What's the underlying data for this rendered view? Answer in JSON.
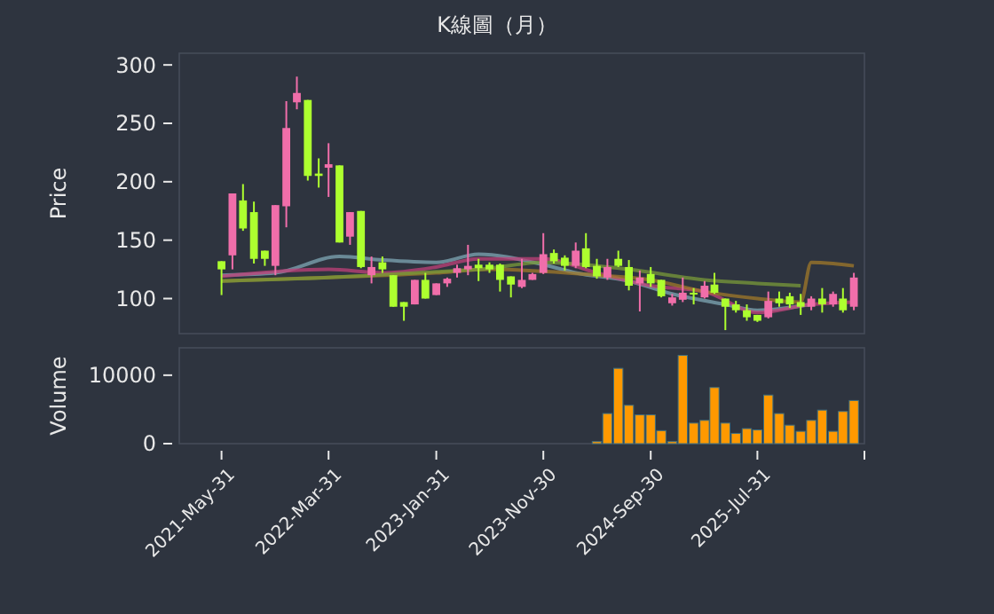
{
  "chart_data": [
    {
      "type": "candlestick",
      "title": "K線圖（月）",
      "ylabel": "Price",
      "x": [
        "2021-05",
        "2021-06",
        "2021-07",
        "2021-08",
        "2021-09",
        "2021-10",
        "2021-11",
        "2021-12",
        "2022-01",
        "2022-02",
        "2022-03",
        "2022-04",
        "2022-05",
        "2022-06",
        "2022-07",
        "2022-08",
        "2022-09",
        "2022-10",
        "2022-11",
        "2022-12",
        "2023-01",
        "2023-02",
        "2023-03",
        "2023-04",
        "2023-05",
        "2023-06",
        "2023-07",
        "2023-08",
        "2023-09",
        "2023-10",
        "2023-11",
        "2023-12",
        "2024-01",
        "2024-02",
        "2024-03",
        "2024-04",
        "2024-05",
        "2024-06",
        "2024-07",
        "2024-08",
        "2024-09",
        "2024-10",
        "2024-11",
        "2024-12",
        "2025-01",
        "2025-02",
        "2025-03",
        "2025-04",
        "2025-05",
        "2025-06",
        "2025-07",
        "2025-08",
        "2025-09",
        "2025-10",
        "2025-11",
        "2025-12",
        "2026-01",
        "2026-02",
        "2026-03",
        "2026-04"
      ],
      "ohlc": [
        [
          132,
          132,
          103,
          125
        ],
        [
          137,
          190,
          125,
          190
        ],
        [
          184,
          198,
          158,
          160
        ],
        [
          174,
          183,
          130,
          134
        ],
        [
          141,
          141,
          128,
          134
        ],
        [
          128,
          180,
          120,
          180
        ],
        [
          179,
          269,
          161,
          246
        ],
        [
          268,
          290,
          262,
          276
        ],
        [
          270,
          270,
          201,
          205
        ],
        [
          207,
          220,
          195,
          205
        ],
        [
          212,
          233,
          187,
          215
        ],
        [
          214,
          214,
          148,
          148
        ],
        [
          153,
          174,
          146,
          174
        ],
        [
          175,
          175,
          126,
          127
        ],
        [
          120,
          136,
          113,
          127
        ],
        [
          131,
          136,
          122,
          125
        ],
        [
          120,
          120,
          93,
          93
        ],
        [
          97,
          97,
          81,
          93
        ],
        [
          95,
          116,
          95,
          116
        ],
        [
          116,
          122,
          100,
          100
        ],
        [
          103,
          113,
          103,
          113
        ],
        [
          113,
          118,
          110,
          117
        ],
        [
          122,
          129,
          118,
          126
        ],
        [
          125,
          146,
          120,
          128
        ],
        [
          129,
          134,
          115,
          126
        ],
        [
          129,
          131,
          122,
          125
        ],
        [
          129,
          130,
          106,
          116
        ],
        [
          119,
          119,
          101,
          112
        ],
        [
          110,
          134,
          109,
          116
        ],
        [
          116,
          122,
          116,
          121
        ],
        [
          122,
          156,
          121,
          138
        ],
        [
          139,
          142,
          130,
          132
        ],
        [
          135,
          137,
          124,
          128
        ],
        [
          128,
          148,
          126,
          141
        ],
        [
          143,
          156,
          126,
          127
        ],
        [
          128,
          134,
          117,
          119
        ],
        [
          118,
          134,
          116,
          127
        ],
        [
          134,
          141,
          127,
          128
        ],
        [
          127,
          133,
          107,
          111
        ],
        [
          113,
          124,
          89,
          118
        ],
        [
          121,
          127,
          110,
          113
        ],
        [
          116,
          116,
          101,
          102
        ],
        [
          96,
          104,
          94,
          101
        ],
        [
          99,
          118,
          97,
          105
        ],
        [
          105,
          109,
          95,
          104
        ],
        [
          101,
          115,
          100,
          111
        ],
        [
          112,
          122,
          104,
          105
        ],
        [
          100,
          100,
          73,
          93
        ],
        [
          95,
          98,
          88,
          90
        ],
        [
          90,
          95,
          81,
          84
        ],
        [
          86,
          86,
          80,
          81
        ],
        [
          84,
          106,
          83,
          98
        ],
        [
          100,
          106,
          93,
          96
        ],
        [
          102,
          105,
          92,
          95
        ],
        [
          97,
          104,
          86,
          93
        ],
        [
          93,
          102,
          90,
          100
        ],
        [
          100,
          109,
          88,
          95
        ],
        [
          95,
          106,
          93,
          104
        ],
        [
          100,
          109,
          88,
          90
        ],
        [
          93,
          122,
          90,
          118
        ]
      ],
      "colors": [
        "#adff2f",
        "#f06eaa",
        "#adff2f",
        "#adff2f",
        "#adff2f",
        "#f06eaa",
        "#f06eaa",
        "#f06eaa",
        "#adff2f",
        "#adff2f",
        "#f06eaa",
        "#adff2f",
        "#f06eaa",
        "#adff2f",
        "#f06eaa",
        "#adff2f",
        "#adff2f",
        "#adff2f",
        "#f06eaa",
        "#adff2f",
        "#f06eaa",
        "#f06eaa",
        "#f06eaa",
        "#f06eaa",
        "#adff2f",
        "#adff2f",
        "#adff2f",
        "#adff2f",
        "#f06eaa",
        "#f06eaa",
        "#f06eaa",
        "#adff2f",
        "#adff2f",
        "#f06eaa",
        "#adff2f",
        "#adff2f",
        "#f06eaa",
        "#adff2f",
        "#adff2f",
        "#f06eaa",
        "#adff2f",
        "#adff2f",
        "#f06eaa",
        "#f06eaa",
        "#adff2f",
        "#f06eaa",
        "#adff2f",
        "#adff2f",
        "#adff2f",
        "#adff2f",
        "#adff2f",
        "#f06eaa",
        "#adff2f",
        "#adff2f",
        "#adff2f",
        "#f06eaa",
        "#adff2f",
        "#f06eaa",
        "#adff2f",
        "#f06eaa"
      ],
      "series": [
        {
          "type": "line",
          "color": "#7fa7b5",
          "x": [
            "2021-05",
            "2021-10",
            "2022-04",
            "2022-08",
            "2023-01",
            "2023-05",
            "2023-11",
            "2024-02",
            "2024-07",
            "2024-11",
            "2025-04",
            "2025-07",
            "2025-12"
          ],
          "values": [
            120,
            122,
            136,
            133,
            131,
            138,
            129,
            122,
            115,
            104,
            95,
            90,
            95
          ]
        },
        {
          "type": "line",
          "color": "#c0407a",
          "x": [
            "2021-05",
            "2022-03",
            "2022-08",
            "2023-01",
            "2023-05",
            "2023-11",
            "2024-04",
            "2024-09",
            "2025-02",
            "2025-07",
            "2025-12",
            "2026-04"
          ],
          "values": [
            119,
            125,
            122,
            127,
            134,
            134,
            122,
            111,
            106,
            88,
            95,
            97
          ]
        },
        {
          "type": "line",
          "color": "#a0782a",
          "x": [
            "2021-05",
            "2022-03",
            "2023-01",
            "2023-06",
            "2024-04",
            "2024-09",
            "2025-02",
            "2025-07",
            "2025-11",
            "2025-12",
            "2026-02",
            "2026-04"
          ],
          "values": [
            115,
            118,
            122,
            125,
            120,
            116,
            106,
            100,
            97,
            131,
            130,
            128
          ]
        },
        {
          "type": "line",
          "color": "#7a9a3a",
          "x": [
            "2021-05",
            "2022-03",
            "2023-01",
            "2023-05",
            "2023-11",
            "2024-07",
            "2025-02",
            "2025-07",
            "2025-11"
          ],
          "values": [
            115,
            118,
            123,
            125,
            131,
            125,
            116,
            113,
            111
          ]
        }
      ],
      "xlim": [
        "2021-01",
        "2026-05"
      ],
      "ylim": [
        70,
        310
      ],
      "yticks": [
        100,
        150,
        200,
        250,
        300
      ],
      "tick_labels": "y"
    },
    {
      "type": "bar",
      "ylabel": "Volume",
      "color": "#ff9900",
      "x": [
        "2024-04",
        "2024-05",
        "2024-06",
        "2024-07",
        "2024-08",
        "2024-09",
        "2024-10",
        "2024-11",
        "2024-12",
        "2025-01",
        "2025-02",
        "2025-03",
        "2025-04",
        "2025-05",
        "2025-06",
        "2025-07",
        "2025-08",
        "2025-09",
        "2025-10",
        "2025-11",
        "2025-12",
        "2026-01",
        "2026-02",
        "2026-03",
        "2026-04"
      ],
      "values": [
        300,
        4400,
        11000,
        5600,
        4200,
        4200,
        1900,
        300,
        12900,
        3000,
        3400,
        8200,
        3000,
        1500,
        2200,
        2000,
        7100,
        4400,
        2700,
        1800,
        3400,
        4900,
        1800,
        4700,
        6300
      ],
      "xlim": [
        "2021-01",
        "2026-05"
      ],
      "ylim": [
        0,
        14000
      ],
      "yticks": [
        0,
        10000
      ],
      "xticks": [
        {
          "value": "2021-05",
          "label": "2021-May-31"
        },
        {
          "value": "2022-03",
          "label": "2022-Mar-31"
        },
        {
          "value": "2023-01",
          "label": "2023-Jan-31"
        },
        {
          "value": "2023-11",
          "label": "2023-Nov-30"
        },
        {
          "value": "2024-09",
          "label": "2024-Sep-30"
        },
        {
          "value": "2025-07",
          "label": "2025-Jul-31"
        },
        {
          "value": "2026-05",
          "label": null
        }
      ]
    }
  ]
}
